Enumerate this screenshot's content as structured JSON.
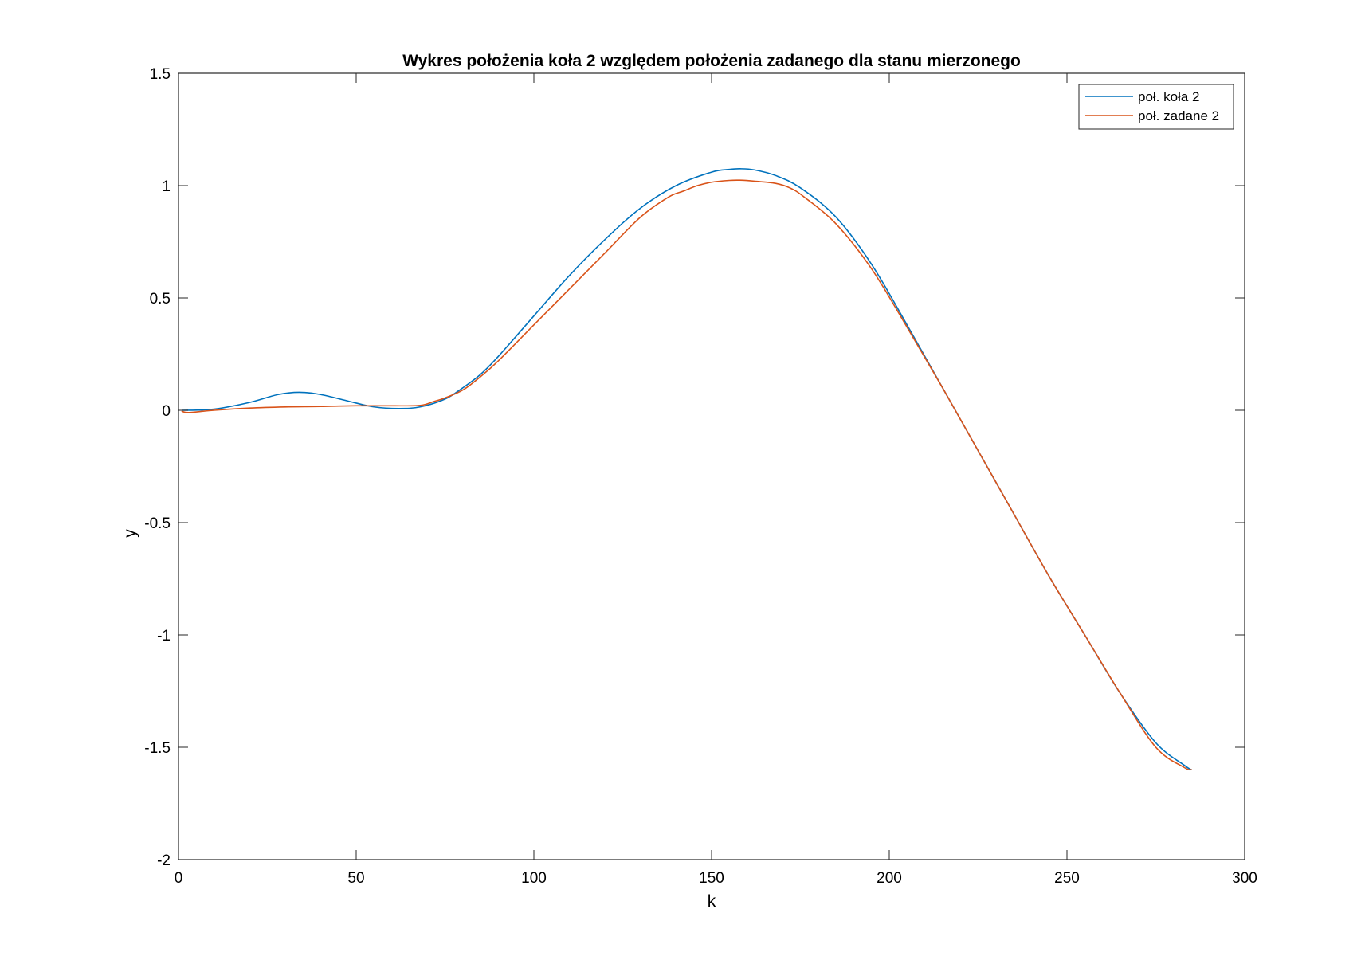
{
  "chart_data": {
    "type": "line",
    "title": "Wykres położenia koła 2 względem położenia zadanego dla stanu mierzonego",
    "xlabel": "k",
    "ylabel": "y",
    "xlim": [
      0,
      300
    ],
    "ylim": [
      -2,
      1.5
    ],
    "xticks": [
      0,
      50,
      100,
      150,
      200,
      250,
      300
    ],
    "xtick_labels": [
      "0",
      "50",
      "100",
      "150",
      "200",
      "250",
      "300"
    ],
    "yticks": [
      -2,
      -1.5,
      -1,
      -0.5,
      0,
      0.5,
      1,
      1.5
    ],
    "ytick_labels": [
      "-2",
      "-1.5",
      "-1",
      "-0.5",
      "0",
      "0.5",
      "1",
      "1.5"
    ],
    "grid": false,
    "legend_position": "top-right",
    "series": [
      {
        "name": "poł. koła 2",
        "color": "#0072BD",
        "x": [
          1,
          10,
          20,
          28,
          34,
          40,
          48,
          55,
          62,
          68,
          75,
          80,
          85,
          90,
          100,
          110,
          120,
          130,
          140,
          150,
          155,
          158,
          162,
          168,
          175,
          185,
          195,
          205,
          215,
          225,
          235,
          245,
          255,
          265,
          275,
          283,
          285
        ],
        "y": [
          0.0,
          0.005,
          0.035,
          0.07,
          0.08,
          0.07,
          0.04,
          0.015,
          0.008,
          0.015,
          0.05,
          0.1,
          0.16,
          0.24,
          0.42,
          0.6,
          0.76,
          0.9,
          1.0,
          1.06,
          1.072,
          1.075,
          1.07,
          1.045,
          0.99,
          0.86,
          0.65,
          0.38,
          0.1,
          -0.18,
          -0.46,
          -0.74,
          -1.0,
          -1.26,
          -1.48,
          -1.58,
          -1.6
        ]
      },
      {
        "name": "poł. zadane 2",
        "color": "#D95319",
        "x": [
          1,
          3,
          10,
          20,
          30,
          40,
          50,
          60,
          68,
          72,
          75,
          80,
          85,
          90,
          100,
          110,
          120,
          130,
          138,
          142,
          146,
          150,
          155,
          158,
          162,
          168,
          172,
          176,
          185,
          195,
          205,
          215,
          225,
          235,
          245,
          255,
          265,
          275,
          283,
          285
        ],
        "y": [
          -0.005,
          -0.01,
          0.0,
          0.01,
          0.015,
          0.017,
          0.02,
          0.02,
          0.022,
          0.04,
          0.055,
          0.09,
          0.15,
          0.22,
          0.38,
          0.54,
          0.7,
          0.86,
          0.95,
          0.975,
          1.0,
          1.015,
          1.023,
          1.024,
          1.02,
          1.01,
          0.99,
          0.95,
          0.83,
          0.63,
          0.37,
          0.1,
          -0.18,
          -0.46,
          -0.74,
          -1.0,
          -1.26,
          -1.5,
          -1.59,
          -1.6
        ]
      }
    ]
  }
}
